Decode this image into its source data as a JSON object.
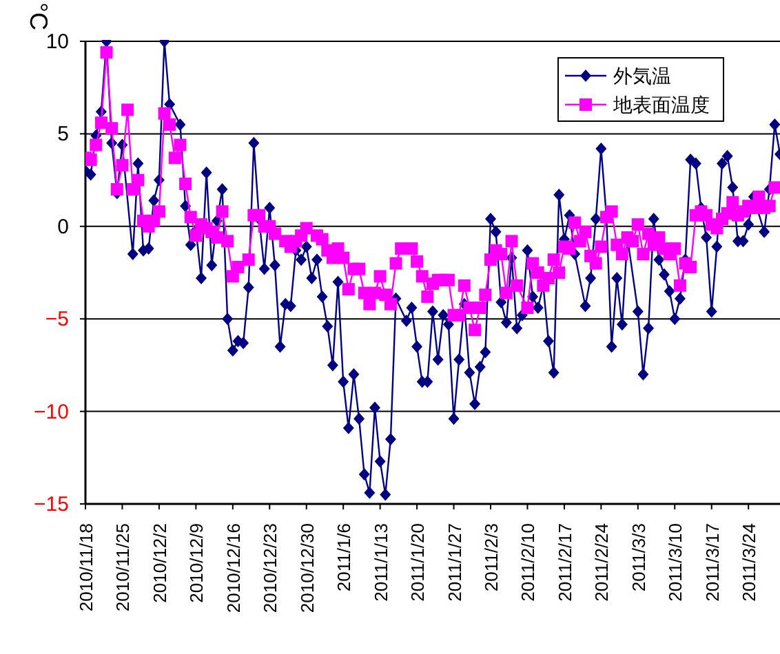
{
  "chart_data": {
    "type": "line",
    "ylabel": "°C",
    "ylim": [
      -15,
      10
    ],
    "yticks": [
      -15,
      -10,
      -5,
      0,
      5,
      10
    ],
    "grid": "y",
    "legend": "top right",
    "line_style": "solid",
    "xlim": [
      "2010-11-18",
      "2011-03-30"
    ],
    "xticks": [
      {
        "value": "2010-11-18",
        "label": "2010/11/18"
      },
      {
        "value": "2010-11-25",
        "label": "2010/11/25"
      },
      {
        "value": "2010-12-02",
        "label": "2010/12/2"
      },
      {
        "value": "2010-12-09",
        "label": "2010/12/9"
      },
      {
        "value": "2010-12-16",
        "label": "2010/12/16"
      },
      {
        "value": "2010-12-23",
        "label": "2010/12/23"
      },
      {
        "value": "2010-12-30",
        "label": "2010/12/30"
      },
      {
        "value": "2011-01-06",
        "label": "2011/1/6"
      },
      {
        "value": "2011-01-13",
        "label": "2011/1/13"
      },
      {
        "value": "2011-01-20",
        "label": "2011/1/20"
      },
      {
        "value": "2011-01-27",
        "label": "2011/1/27"
      },
      {
        "value": "2011-02-03",
        "label": "2011/2/3"
      },
      {
        "value": "2011-02-10",
        "label": "2011/2/10"
      },
      {
        "value": "2011-02-17",
        "label": "2011/2/17"
      },
      {
        "value": "2011-02-24",
        "label": "2011/2/24"
      },
      {
        "value": "2011-03-03",
        "label": "2011/3/3"
      },
      {
        "value": "2011-03-10",
        "label": "2011/3/10"
      },
      {
        "value": "2011-03-17",
        "label": "2011/3/17"
      },
      {
        "value": "2011-03-24",
        "label": "2011/3/24"
      }
    ],
    "series": [
      {
        "name": "外気温",
        "color": "#000080",
        "marker": "diamond",
        "x": [
          "2010-11-18",
          "2010-11-19",
          "2010-11-20",
          "2010-11-21",
          "2010-11-22",
          "2010-11-23",
          "2010-11-24",
          "2010-11-25",
          "2010-11-27",
          "2010-11-28",
          "2010-11-29",
          "2010-11-30",
          "2010-12-01",
          "2010-12-02",
          "2010-12-03",
          "2010-12-04",
          "2010-12-06",
          "2010-12-07",
          "2010-12-08",
          "2010-12-09",
          "2010-12-10",
          "2010-12-11",
          "2010-12-12",
          "2010-12-13",
          "2010-12-14",
          "2010-12-15",
          "2010-12-16",
          "2010-12-17",
          "2010-12-18",
          "2010-12-19",
          "2010-12-20",
          "2010-12-21",
          "2010-12-22",
          "2010-12-23",
          "2010-12-24",
          "2010-12-25",
          "2010-12-26",
          "2010-12-27",
          "2010-12-28",
          "2010-12-29",
          "2010-12-30",
          "2010-12-31",
          "2011-01-01",
          "2011-01-02",
          "2011-01-03",
          "2011-01-04",
          "2011-01-05",
          "2011-01-06",
          "2011-01-07",
          "2011-01-08",
          "2011-01-09",
          "2011-01-10",
          "2011-01-11",
          "2011-01-12",
          "2011-01-13",
          "2011-01-14",
          "2011-01-15",
          "2011-01-16",
          "2011-01-18",
          "2011-01-19",
          "2011-01-20",
          "2011-01-21",
          "2011-01-22",
          "2011-01-23",
          "2011-01-24",
          "2011-01-25",
          "2011-01-26",
          "2011-01-27",
          "2011-01-28",
          "2011-01-29",
          "2011-01-30",
          "2011-01-31",
          "2011-02-01",
          "2011-02-02",
          "2011-02-03",
          "2011-02-04",
          "2011-02-05",
          "2011-02-06",
          "2011-02-07",
          "2011-02-08",
          "2011-02-09",
          "2011-02-10",
          "2011-02-11",
          "2011-02-12",
          "2011-02-13",
          "2011-02-14",
          "2011-02-15",
          "2011-02-16",
          "2011-02-17",
          "2011-02-18",
          "2011-02-19",
          "2011-02-21",
          "2011-02-22",
          "2011-02-23",
          "2011-02-24",
          "2011-02-25",
          "2011-02-26",
          "2011-02-27",
          "2011-02-28",
          "2011-03-01",
          "2011-03-03",
          "2011-03-04",
          "2011-03-05",
          "2011-03-06",
          "2011-03-07",
          "2011-03-08",
          "2011-03-09",
          "2011-03-10",
          "2011-03-11",
          "2011-03-12",
          "2011-03-13",
          "2011-03-14",
          "2011-03-15",
          "2011-03-16",
          "2011-03-17",
          "2011-03-18",
          "2011-03-19",
          "2011-03-20",
          "2011-03-21",
          "2011-03-22",
          "2011-03-23",
          "2011-03-24",
          "2011-03-25",
          "2011-03-27",
          "2011-03-28",
          "2011-03-29",
          "2011-03-30"
        ],
        "values": [
          3.0,
          2.8,
          4.9,
          6.2,
          10,
          4.5,
          1.8,
          4.4,
          -1.5,
          3.4,
          -1.3,
          -1.2,
          1.4,
          2.5,
          10,
          6.6,
          5.5,
          1.1,
          -1.0,
          -0.2,
          -2.8,
          2.9,
          -2.1,
          0.3,
          2.0,
          -5.0,
          -6.7,
          -6.2,
          -6.3,
          -3.3,
          4.5,
          0.4,
          -2.3,
          1.0,
          -2.1,
          -6.5,
          -4.2,
          -4.3,
          -1.3,
          -1.8,
          -1.1,
          -2.8,
          -1.8,
          -3.8,
          -5.4,
          -7.5,
          -3.0,
          -8.4,
          -10.9,
          -8.0,
          -10.4,
          -13.4,
          -14.4,
          -9.8,
          -12.7,
          -14.5,
          -11.5,
          -3.9,
          -5.1,
          -4.4,
          -6.5,
          -8.4,
          -8.4,
          -4.6,
          -7.2,
          -4.8,
          -5.3,
          -10.4,
          -7.2,
          -4.2,
          -7.9,
          -9.6,
          -7.6,
          -6.8,
          0.4,
          -0.3,
          -4.1,
          -5.2,
          -1.7,
          -5.5,
          -4.8,
          -1.3,
          -3.8,
          -4.4,
          -3.2,
          -6.2,
          -7.9,
          1.7,
          -0.7,
          0.6,
          -1.5,
          -4.3,
          -2.8,
          0.4,
          4.2,
          0.6,
          -6.5,
          -2.8,
          -5.3,
          -0.6,
          -4.6,
          -8.0,
          -5.5,
          0.4,
          -1.8,
          -2.6,
          -3.5,
          -5.0,
          -3.9,
          -1.8,
          3.6,
          3.4,
          1.0,
          -0.6,
          -4.6,
          -1.1,
          3.4,
          3.8,
          2.1,
          -0.8,
          -0.8,
          0.1,
          1.6,
          -0.3,
          2.0,
          5.5,
          3.9
        ]
      },
      {
        "name": "地表面温度",
        "color": "#ff00ff",
        "marker": "square",
        "x": [
          "2010-11-18",
          "2010-11-19",
          "2010-11-20",
          "2010-11-21",
          "2010-11-22",
          "2010-11-23",
          "2010-11-24",
          "2010-11-25",
          "2010-11-26",
          "2010-11-27",
          "2010-11-28",
          "2010-11-29",
          "2010-11-30",
          "2010-12-01",
          "2010-12-02",
          "2010-12-03",
          "2010-12-04",
          "2010-12-05",
          "2010-12-06",
          "2010-12-07",
          "2010-12-08",
          "2010-12-09",
          "2010-12-10",
          "2010-12-11",
          "2010-12-12",
          "2010-12-13",
          "2010-12-14",
          "2010-12-15",
          "2010-12-16",
          "2010-12-17",
          "2010-12-19",
          "2010-12-20",
          "2010-12-21",
          "2010-12-22",
          "2010-12-23",
          "2010-12-24",
          "2010-12-26",
          "2010-12-27",
          "2010-12-28",
          "2010-12-29",
          "2010-12-30",
          "2011-01-01",
          "2011-01-02",
          "2011-01-03",
          "2011-01-04",
          "2011-01-05",
          "2011-01-06",
          "2011-01-07",
          "2011-01-08",
          "2011-01-09",
          "2011-01-10",
          "2011-01-11",
          "2011-01-12",
          "2011-01-13",
          "2011-01-14",
          "2011-01-15",
          "2011-01-16",
          "2011-01-17",
          "2011-01-19",
          "2011-01-20",
          "2011-01-21",
          "2011-01-22",
          "2011-01-23",
          "2011-01-24",
          "2011-01-25",
          "2011-01-26",
          "2011-01-27",
          "2011-01-28",
          "2011-01-29",
          "2011-01-30",
          "2011-01-31",
          "2011-02-01",
          "2011-02-02",
          "2011-02-03",
          "2011-02-04",
          "2011-02-05",
          "2011-02-06",
          "2011-02-07",
          "2011-02-08",
          "2011-02-10",
          "2011-02-11",
          "2011-02-12",
          "2011-02-13",
          "2011-02-14",
          "2011-02-15",
          "2011-02-16",
          "2011-02-17",
          "2011-02-18",
          "2011-02-19",
          "2011-02-20",
          "2011-02-21",
          "2011-02-22",
          "2011-02-23",
          "2011-02-24",
          "2011-02-25",
          "2011-02-26",
          "2011-02-27",
          "2011-02-28",
          "2011-03-01",
          "2011-03-02",
          "2011-03-03",
          "2011-03-04",
          "2011-03-05",
          "2011-03-06",
          "2011-03-07",
          "2011-03-08",
          "2011-03-09",
          "2011-03-10",
          "2011-03-11",
          "2011-03-12",
          "2011-03-13",
          "2011-03-14",
          "2011-03-15",
          "2011-03-16",
          "2011-03-17",
          "2011-03-18",
          "2011-03-19",
          "2011-03-20",
          "2011-03-21",
          "2011-03-22",
          "2011-03-23",
          "2011-03-24",
          "2011-03-25",
          "2011-03-26",
          "2011-03-27",
          "2011-03-28",
          "2011-03-29"
        ],
        "values": [
          3.7,
          3.6,
          4.4,
          5.6,
          9.4,
          5.3,
          2.0,
          3.3,
          6.3,
          2.0,
          2.5,
          0.3,
          0.0,
          0.3,
          0.8,
          6.1,
          5.5,
          3.7,
          4.4,
          2.3,
          0.5,
          -0.5,
          0.1,
          -0.1,
          -0.3,
          -0.6,
          0.8,
          -0.8,
          -2.7,
          -2.2,
          -1.8,
          0.6,
          0.6,
          0.0,
          0.0,
          -0.4,
          -0.8,
          -1.1,
          -0.8,
          -0.5,
          -0.1,
          -0.5,
          -0.7,
          -1.3,
          -1.7,
          -1.2,
          -1.7,
          -3.4,
          -2.3,
          -2.3,
          -3.6,
          -4.2,
          -3.6,
          -2.7,
          -3.7,
          -4.2,
          -2.0,
          -1.2,
          -1.2,
          -1.9,
          -2.7,
          -3.8,
          -3.1,
          -2.9,
          -2.9,
          -2.9,
          -4.8,
          -4.8,
          -3.2,
          -4.4,
          -5.6,
          -4.4,
          -3.7,
          -1.8,
          -1.3,
          -1.5,
          -3.6,
          -0.8,
          -3.2,
          -4.4,
          -2.0,
          -2.5,
          -3.2,
          -2.8,
          -1.8,
          -2.5,
          -1.1,
          -1.2,
          0.2,
          -0.8,
          -0.3,
          -1.6,
          -2.0,
          -1.1,
          0.5,
          0.8,
          -1.0,
          -1.5,
          -0.6,
          -0.8,
          0.1,
          -1.5,
          -0.4,
          -1.0,
          -0.6,
          -1.2,
          -1.5,
          -1.2,
          -3.2,
          -2.0,
          -2.2,
          0.6,
          0.8,
          0.6,
          0.1,
          -0.1,
          0.4,
          0.7,
          1.3,
          0.6,
          0.8,
          1.1,
          1.0,
          1.6,
          1.0,
          1.1,
          2.1
        ]
      }
    ]
  }
}
